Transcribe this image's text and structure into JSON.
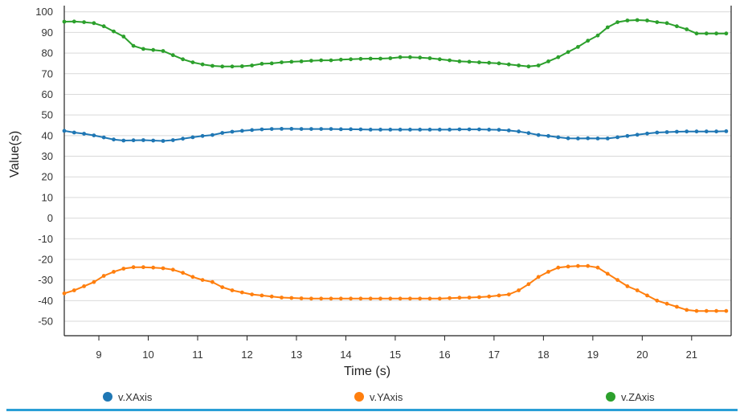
{
  "chart_data": {
    "type": "line",
    "xlabel": "Time (s)",
    "ylabel": "Value(s)",
    "xlim": [
      8.3,
      21.8
    ],
    "ylim": [
      -57,
      103
    ],
    "xticks": [
      "9",
      "10",
      "11",
      "12",
      "13",
      "14",
      "15",
      "16",
      "17",
      "18",
      "19",
      "20",
      "21"
    ],
    "yticks": [
      "100",
      "90",
      "80",
      "70",
      "60",
      "50",
      "40",
      "30",
      "20",
      "10",
      "0",
      "-10",
      "-20",
      "-30",
      "-40",
      "-50"
    ],
    "grid": true,
    "legend_position": "bottom",
    "colors": {
      "v.XAxis": "#1f77b4",
      "v.YAxis": "#ff7f0e",
      "v.ZAxis": "#2ca02c"
    },
    "x": [
      8.3,
      8.5,
      8.7,
      8.9,
      9.1,
      9.3,
      9.5,
      9.7,
      9.9,
      10.1,
      10.3,
      10.5,
      10.7,
      10.9,
      11.1,
      11.3,
      11.5,
      11.7,
      11.9,
      12.1,
      12.3,
      12.5,
      12.7,
      12.9,
      13.1,
      13.3,
      13.5,
      13.7,
      13.9,
      14.1,
      14.3,
      14.5,
      14.7,
      14.9,
      15.1,
      15.3,
      15.5,
      15.7,
      15.9,
      16.1,
      16.3,
      16.5,
      16.7,
      16.9,
      17.1,
      17.3,
      17.5,
      17.7,
      17.9,
      18.1,
      18.3,
      18.5,
      18.7,
      18.9,
      19.1,
      19.3,
      19.5,
      19.7,
      19.9,
      20.1,
      20.3,
      20.5,
      20.7,
      20.9,
      21.1,
      21.3,
      21.5,
      21.7
    ],
    "series": [
      {
        "name": "v.XAxis",
        "values": [
          42.3,
          41.5,
          40.9,
          40.1,
          39.1,
          38.1,
          37.6,
          37.7,
          37.8,
          37.6,
          37.4,
          37.8,
          38.5,
          39.2,
          39.8,
          40.3,
          41.3,
          41.9,
          42.3,
          42.7,
          43.0,
          43.2,
          43.3,
          43.3,
          43.2,
          43.2,
          43.2,
          43.2,
          43.1,
          43.1,
          43.0,
          42.9,
          42.9,
          42.9,
          42.9,
          42.9,
          42.9,
          42.9,
          42.9,
          42.9,
          43.0,
          43.0,
          43.0,
          42.9,
          42.8,
          42.5,
          42.0,
          41.2,
          40.3,
          39.8,
          39.2,
          38.7,
          38.6,
          38.7,
          38.6,
          38.6,
          39.2,
          39.8,
          40.4,
          41.0,
          41.5,
          41.7,
          41.9,
          42.0,
          42.0,
          42.0,
          42.0,
          42.1
        ]
      },
      {
        "name": "v.YAxis",
        "values": [
          -36.5,
          -35.0,
          -33.0,
          -31.0,
          -28.0,
          -26.0,
          -24.5,
          -23.8,
          -23.8,
          -24.0,
          -24.3,
          -25.0,
          -26.5,
          -28.5,
          -30.0,
          -31.0,
          -33.5,
          -35.0,
          -36.0,
          -37.0,
          -37.5,
          -38.0,
          -38.5,
          -38.7,
          -38.9,
          -39.0,
          -39.0,
          -39.0,
          -39.0,
          -39.0,
          -39.0,
          -39.0,
          -39.0,
          -39.0,
          -39.0,
          -39.0,
          -39.0,
          -39.0,
          -39.0,
          -38.8,
          -38.6,
          -38.5,
          -38.3,
          -38.0,
          -37.5,
          -37.0,
          -35.0,
          -32.0,
          -28.5,
          -26.0,
          -24.0,
          -23.5,
          -23.2,
          -23.2,
          -24.0,
          -27.0,
          -30.0,
          -33.0,
          -35.0,
          -37.5,
          -40.0,
          -41.5,
          -43.0,
          -44.5,
          -45.0,
          -45.0,
          -45.0,
          -45.0
        ]
      },
      {
        "name": "v.ZAxis",
        "values": [
          95.2,
          95.3,
          95.0,
          94.5,
          93.0,
          90.5,
          88.0,
          83.5,
          82.0,
          81.5,
          81.0,
          79.0,
          77.0,
          75.5,
          74.5,
          73.8,
          73.5,
          73.5,
          73.6,
          74.0,
          74.8,
          75.0,
          75.5,
          75.8,
          76.0,
          76.3,
          76.5,
          76.5,
          76.8,
          77.0,
          77.2,
          77.3,
          77.3,
          77.5,
          78.0,
          78.0,
          77.8,
          77.5,
          77.0,
          76.5,
          76.0,
          75.8,
          75.5,
          75.3,
          75.0,
          74.5,
          74.0,
          73.5,
          74.0,
          76.0,
          78.0,
          80.5,
          83.0,
          86.0,
          88.5,
          92.5,
          95.0,
          95.8,
          96.0,
          95.8,
          95.0,
          94.5,
          93.0,
          91.5,
          89.5,
          89.5,
          89.5,
          89.5
        ]
      }
    ]
  }
}
